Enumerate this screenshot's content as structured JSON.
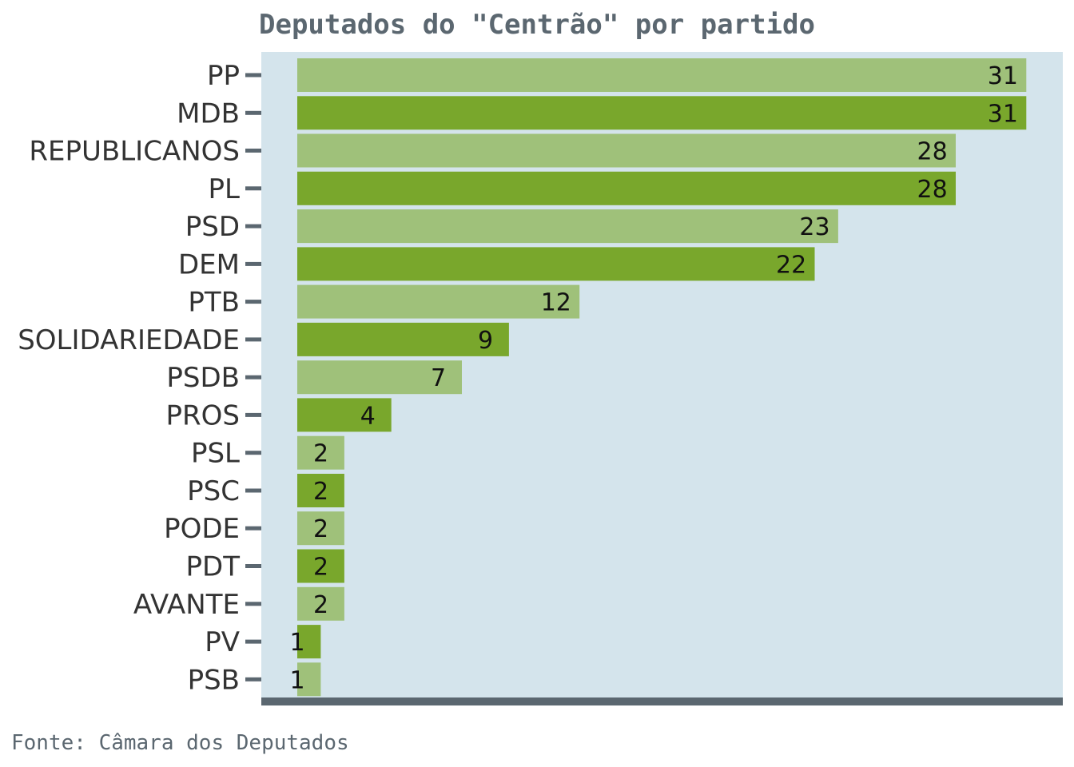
{
  "chart_data": {
    "type": "bar",
    "orientation": "horizontal",
    "title": "Deputados do \"Centrão\" por partido",
    "caption": "Fonte: Câmara dos Deputados",
    "categories": [
      "PP",
      "MDB",
      "REPUBLICANOS",
      "PL",
      "PSD",
      "DEM",
      "PTB",
      "SOLIDARIEDADE",
      "PSDB",
      "PROS",
      "PSL",
      "PSC",
      "PODE",
      "PDT",
      "AVANTE",
      "PV",
      "PSB"
    ],
    "values": [
      31,
      31,
      28,
      28,
      23,
      22,
      12,
      9,
      7,
      4,
      2,
      2,
      2,
      2,
      2,
      1,
      1
    ],
    "xlim": [
      0,
      32.5
    ],
    "grid": false,
    "legend": "none",
    "colors": {
      "panel": "#d4e4ec",
      "bar_light": "#9fc17a",
      "bar_dark": "#79a72c",
      "axis": "#5b6770"
    }
  }
}
